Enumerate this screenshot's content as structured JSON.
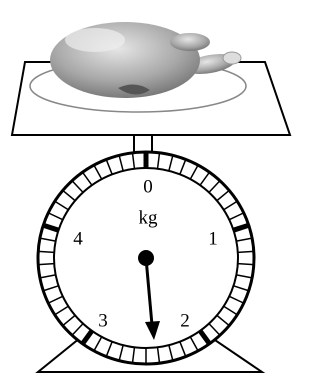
{
  "dial": {
    "unit": "kg",
    "labels": [
      "0",
      "1",
      "2",
      "3",
      "4"
    ]
  }
}
